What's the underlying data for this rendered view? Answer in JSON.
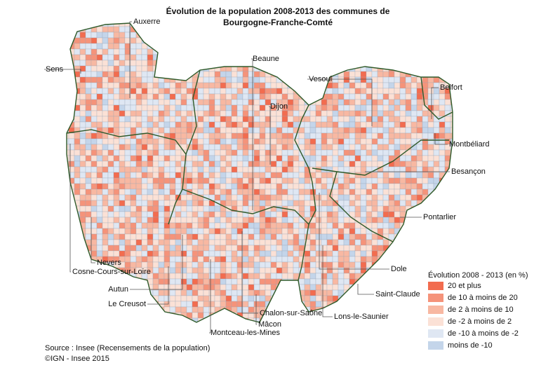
{
  "title": [
    "Évolution de la population 2008-2013 des communes de",
    "Bourgogne-Franche-Comté"
  ],
  "cities": [
    "Auxerre",
    "Sens",
    "Beaune",
    "Dijon",
    "Vesoul",
    "Belfort",
    "Montbéliard",
    "Besançon",
    "Pontarlier",
    "Dole",
    "Saint-Claude",
    "Lons-le-Saunier",
    "Chalon-sur-Saône",
    "Mâcon",
    "Montceau-les-Mines",
    "Le Creusot",
    "Autun",
    "Cosne-Cours-sur-Loire",
    "Nevers"
  ],
  "legend": {
    "title": "Évolution 2008 - 2013 (en %)",
    "items": [
      {
        "label": "20 et plus",
        "color": "#f26c4f"
      },
      {
        "label": "de 10 à moins de 20",
        "color": "#f5937a"
      },
      {
        "label": "de 2 à moins de 10",
        "color": "#f8b8a2"
      },
      {
        "label": "de -2 à moins de 2",
        "color": "#fbe1d6"
      },
      {
        "label": "de -10 à moins de -2",
        "color": "#dfe7f3"
      },
      {
        "label": "moins de -10",
        "color": "#c4d5ea"
      }
    ]
  },
  "source": [
    "Source : Insee (Recensements de la population)",
    "©IGN - Insee 2015"
  ]
}
